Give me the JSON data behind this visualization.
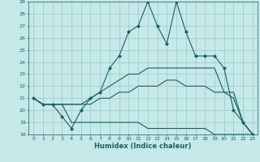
{
  "xlabel": "Humidex (Indice chaleur)",
  "xlim": [
    -0.5,
    23.5
  ],
  "ylim": [
    18,
    29
  ],
  "yticks": [
    18,
    19,
    20,
    21,
    22,
    23,
    24,
    25,
    26,
    27,
    28,
    29
  ],
  "xticks": [
    0,
    1,
    2,
    3,
    4,
    5,
    6,
    7,
    8,
    9,
    10,
    11,
    12,
    13,
    14,
    15,
    16,
    17,
    18,
    19,
    20,
    21,
    22,
    23
  ],
  "background_color": "#c5e8e8",
  "grid_color": "#9dc8c8",
  "line_color": "#1a6060",
  "line1": {
    "x": [
      0,
      1,
      2,
      3,
      4,
      5,
      6,
      7,
      8,
      9,
      10,
      11,
      12,
      13,
      14,
      15,
      16,
      17,
      18,
      19,
      20,
      21,
      22,
      23
    ],
    "y": [
      21,
      20.5,
      20.5,
      19.5,
      18.5,
      20.0,
      21,
      21.5,
      23.5,
      24.5,
      26.5,
      27,
      29,
      27,
      25.5,
      29,
      26.5,
      24.5,
      24.5,
      24.5,
      23.5,
      20,
      19,
      18
    ],
    "marker": "D",
    "markersize": 2.0
  },
  "line2": {
    "x": [
      0,
      1,
      2,
      3,
      4,
      5,
      6,
      7,
      8,
      9,
      10,
      11,
      12,
      13,
      14,
      15,
      16,
      17,
      18,
      19,
      20,
      21,
      22,
      23
    ],
    "y": [
      21,
      20.5,
      20.5,
      20.5,
      20.5,
      20.5,
      21,
      21.5,
      22,
      22.5,
      23,
      23,
      23.5,
      23.5,
      23.5,
      23.5,
      23.5,
      23.5,
      23.5,
      23.5,
      21.5,
      21.5,
      19,
      18
    ]
  },
  "line3": {
    "x": [
      0,
      1,
      2,
      3,
      4,
      5,
      6,
      7,
      8,
      9,
      10,
      11,
      12,
      13,
      14,
      15,
      16,
      17,
      18,
      19,
      20,
      21,
      22,
      23
    ],
    "y": [
      21,
      20.5,
      20.5,
      20.5,
      20.5,
      20.5,
      20.5,
      21,
      21,
      21.5,
      21.5,
      22,
      22,
      22,
      22.5,
      22.5,
      22,
      22,
      22,
      21.5,
      21.5,
      21,
      19,
      18
    ]
  },
  "line4": {
    "x": [
      0,
      1,
      2,
      3,
      4,
      5,
      6,
      7,
      8,
      9,
      10,
      11,
      12,
      13,
      14,
      15,
      16,
      17,
      18,
      19,
      20,
      21,
      22,
      23
    ],
    "y": [
      21,
      20.5,
      20.5,
      20.5,
      19,
      19,
      19,
      19,
      19,
      19,
      19,
      19,
      18.5,
      18.5,
      18.5,
      18.5,
      18.5,
      18.5,
      18.5,
      18,
      18,
      18,
      18,
      18
    ]
  }
}
